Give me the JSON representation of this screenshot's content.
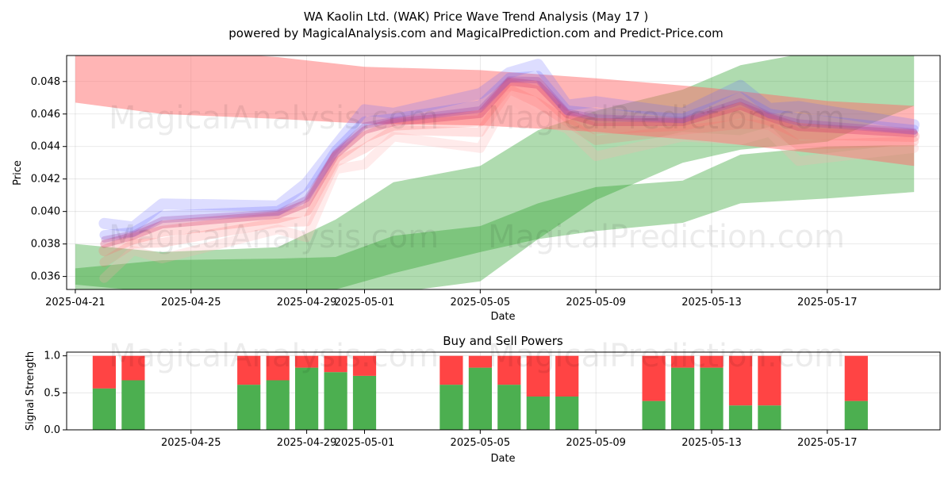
{
  "title_line1": "WA Kaolin Ltd. (WAK) Price Wave Trend Analysis (May 17 )",
  "title_line2": "powered by MagicalAnalysis.com and MagicalPrediction.com and Predict-Price.com",
  "watermarks": [
    "MagicalAnalysis.com",
    "MagicalPrediction.com"
  ],
  "colors": {
    "green_band": "#2ca02c",
    "red_band": "#ff6b6b",
    "blue_band": "#6666ff",
    "buy_bar": "#4caf50",
    "sell_bar": "#ff4444"
  },
  "chart_data": [
    {
      "type": "area",
      "title": "",
      "xlabel": "Date",
      "ylabel": "Price",
      "x_range": [
        "2025-04-21",
        "2025-05-20"
      ],
      "ylim": [
        0.0352,
        0.0496
      ],
      "x_ticks": [
        "2025-04-21",
        "2025-04-25",
        "2025-04-29",
        "2025-05-01",
        "2025-05-05",
        "2025-05-09",
        "2025-05-13",
        "2025-05-17"
      ],
      "y_ticks": [
        0.036,
        0.038,
        0.04,
        0.042,
        0.044,
        0.046,
        0.048
      ],
      "grid": true,
      "bands": [
        {
          "color": "green",
          "x": [
            "2025-04-21",
            "2025-04-24",
            "2025-04-28",
            "2025-04-30",
            "2025-05-02",
            "2025-05-05",
            "2025-05-07",
            "2025-05-09",
            "2025-05-12",
            "2025-05-14",
            "2025-05-17",
            "2025-05-20"
          ],
          "upper": [
            0.0365,
            0.037,
            0.0371,
            0.0372,
            0.0385,
            0.0391,
            0.0405,
            0.0415,
            0.0419,
            0.0435,
            0.044,
            0.0441
          ],
          "lower": [
            0.0355,
            0.035,
            0.035,
            0.0352,
            0.0362,
            0.0375,
            0.0383,
            0.0388,
            0.0393,
            0.0405,
            0.0408,
            0.0412
          ]
        },
        {
          "color": "green",
          "x": [
            "2025-04-21",
            "2025-04-24",
            "2025-04-28",
            "2025-04-30",
            "2025-05-02",
            "2025-05-05",
            "2025-05-07",
            "2025-05-09",
            "2025-05-12",
            "2025-05-14",
            "2025-05-17",
            "2025-05-20"
          ],
          "upper": [
            0.038,
            0.0375,
            0.0378,
            0.0395,
            0.0418,
            0.0428,
            0.045,
            0.0462,
            0.0475,
            0.049,
            0.05,
            0.05
          ],
          "lower": [
            0.035,
            0.0348,
            0.0345,
            0.0348,
            0.035,
            0.0357,
            0.0383,
            0.0407,
            0.043,
            0.0438,
            0.0443,
            0.0465
          ]
        },
        {
          "color": "red",
          "x": [
            "2025-04-21",
            "2025-04-24",
            "2025-04-28",
            "2025-05-01",
            "2025-05-05",
            "2025-05-09",
            "2025-05-13",
            "2025-05-17",
            "2025-05-20"
          ],
          "upper": [
            0.0505,
            0.05,
            0.0495,
            0.0489,
            0.0487,
            0.0482,
            0.0476,
            0.0468,
            0.0465
          ],
          "lower": [
            0.0467,
            0.046,
            0.0457,
            0.0454,
            0.0453,
            0.0449,
            0.0443,
            0.0435,
            0.0428
          ]
        }
      ],
      "wave_center": {
        "x": [
          "2025-04-22",
          "2025-04-23",
          "2025-04-24",
          "2025-04-28",
          "2025-04-29",
          "2025-04-30",
          "2025-05-01",
          "2025-05-02",
          "2025-05-05",
          "2025-05-06",
          "2025-05-07",
          "2025-05-08",
          "2025-05-09",
          "2025-05-12",
          "2025-05-14",
          "2025-05-15",
          "2025-05-16",
          "2025-05-20"
        ],
        "y": [
          0.038,
          0.0385,
          0.0392,
          0.0398,
          0.0405,
          0.0435,
          0.045,
          0.0455,
          0.046,
          0.048,
          0.0478,
          0.046,
          0.0455,
          0.0455,
          0.0465,
          0.0458,
          0.0452,
          0.0448
        ]
      }
    },
    {
      "type": "bar",
      "title": "Buy and Sell Powers",
      "xlabel": "Date",
      "ylabel": "Signal Strength",
      "ylim": [
        0,
        1.05
      ],
      "y_ticks": [
        0.0,
        0.5,
        1.0
      ],
      "x_ticks": [
        "2025-04-25",
        "2025-04-29",
        "2025-05-01",
        "2025-05-05",
        "2025-05-09",
        "2025-05-13",
        "2025-05-17"
      ],
      "dates": [
        "2025-04-22",
        "2025-04-23",
        "2025-04-27",
        "2025-04-28",
        "2025-04-29",
        "2025-04-30",
        "2025-05-01",
        "2025-05-04",
        "2025-05-05",
        "2025-05-06",
        "2025-05-07",
        "2025-05-08",
        "2025-05-11",
        "2025-05-12",
        "2025-05-13",
        "2025-05-14",
        "2025-05-15",
        "2025-05-18"
      ],
      "buy": [
        0.56,
        0.67,
        0.61,
        0.67,
        0.84,
        0.78,
        0.73,
        0.61,
        0.84,
        0.61,
        0.45,
        0.45,
        0.39,
        0.84,
        0.84,
        0.33,
        0.33,
        0.39
      ],
      "total": 1.0
    }
  ]
}
